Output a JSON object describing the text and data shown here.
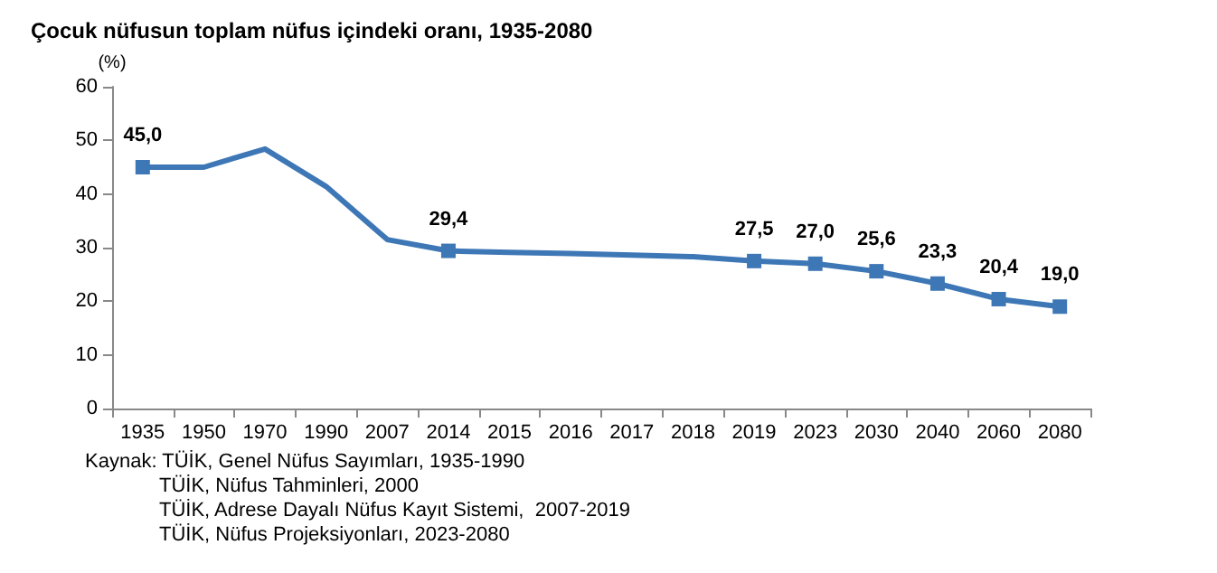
{
  "chart_data": {
    "type": "line",
    "title": "Çocuk nüfusun toplam nüfus içindeki oranı, 1935-2080",
    "ylabel": "(%)",
    "categories": [
      "1935",
      "1950",
      "1970",
      "1990",
      "2007",
      "2014",
      "2015",
      "2016",
      "2017",
      "2018",
      "2019",
      "2023",
      "2030",
      "2040",
      "2060",
      "2080"
    ],
    "series": [
      {
        "color": "#3e77b6",
        "values": [
          45.0,
          45.0,
          48.4,
          41.4,
          31.5,
          29.4,
          29.1,
          28.9,
          28.6,
          28.3,
          27.5,
          27.0,
          25.6,
          23.3,
          20.4,
          19.0
        ],
        "value_labels": [
          "45,0",
          null,
          null,
          null,
          null,
          "29,4",
          null,
          null,
          null,
          null,
          "27,5",
          "27,0",
          "25,6",
          "23,3",
          "20,4",
          "19,0"
        ]
      }
    ],
    "ylim": [
      0,
      60
    ],
    "yticks": [
      0,
      10,
      20,
      30,
      40,
      50,
      60
    ],
    "grid": false,
    "marker": "square",
    "line_style": "solid",
    "annotations": [
      "Kaynak: TÜİK, Genel Nüfus Sayımları, 1935-1990",
      "TÜİK, Nüfus Tahminleri, 2000",
      "TÜİK, Adrese Dayalı Nüfus Kayıt Sistemi,  2007-2019",
      "TÜİK, Nüfus Projeksiyonları, 2023-2080"
    ]
  }
}
